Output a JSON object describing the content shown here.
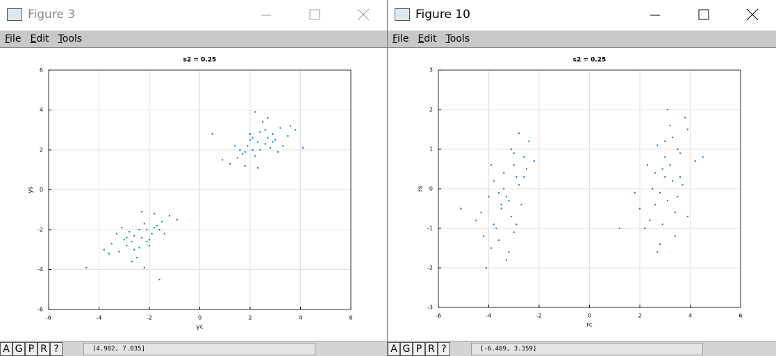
{
  "windows": [
    {
      "title": "Figure 3",
      "menu": [
        "File",
        "Edit",
        "Tools"
      ],
      "toolbar": [
        "A",
        "G",
        "P",
        "R",
        "?"
      ],
      "status": "[4.982, 7.035]"
    },
    {
      "title": "Figure 10",
      "menu": [
        "File",
        "Edit",
        "Tools"
      ],
      "toolbar": [
        "A",
        "G",
        "P",
        "R",
        "?"
      ],
      "status": "[-6.409, 3.359]"
    }
  ],
  "chart_data": [
    {
      "type": "scatter",
      "title": "s2 = 0.25",
      "xlabel": "yc",
      "ylabel": "ys",
      "grid": true,
      "xlim": [
        -6,
        6
      ],
      "ylim": [
        -6,
        6
      ],
      "xticks": [
        -6,
        -4,
        -2,
        0,
        2,
        4,
        6
      ],
      "yticks": [
        -6,
        -4,
        -2,
        0,
        2,
        4,
        6
      ],
      "series": [
        {
          "color": "#0072bd",
          "x": [
            2.3,
            1.8,
            2.9,
            2.1,
            3.2,
            1.5,
            2.6,
            2.0,
            2.4,
            3.5,
            1.2,
            2.8,
            1.9,
            2.2,
            3.0,
            2.5,
            1.6,
            2.7,
            3.8,
            0.9,
            2.3,
            2.0,
            3.3,
            1.7,
            2.6,
            2.9,
            1.4,
            2.1,
            3.1,
            2.4,
            1.8,
            2.7,
            4.1,
            0.5,
            2.2,
            3.6,
            -2.3,
            -1.8,
            -2.9,
            -2.1,
            -3.2,
            -1.5,
            -2.6,
            -2.0,
            -2.4,
            -3.5,
            -1.2,
            -2.8,
            -1.9,
            -2.2,
            -3.0,
            -2.5,
            -1.6,
            -2.7,
            -3.8,
            -0.9,
            -2.3,
            -2.0,
            -3.3,
            -1.7,
            -2.6,
            -2.9,
            -1.4,
            -2.1,
            -3.1,
            -2.4,
            -1.8,
            -2.7,
            -4.5,
            -1.6,
            -2.2,
            -3.6
          ],
          "y": [
            2.4,
            1.9,
            2.8,
            2.0,
            3.1,
            1.6,
            2.3,
            2.5,
            2.9,
            2.7,
            1.3,
            2.1,
            2.2,
            1.7,
            2.5,
            3.4,
            2.0,
            2.6,
            3.0,
            1.5,
            1.1,
            2.8,
            2.2,
            1.8,
            3.0,
            2.4,
            2.2,
            2.6,
            1.9,
            2.0,
            1.2,
            3.6,
            2.1,
            2.8,
            3.9,
            3.2,
            -2.4,
            -1.9,
            -2.8,
            -2.0,
            -3.1,
            -1.6,
            -2.3,
            -2.5,
            -2.9,
            -2.7,
            -1.3,
            -2.1,
            -2.2,
            -1.7,
            -2.5,
            -3.4,
            -2.0,
            -2.6,
            -3.0,
            -1.5,
            -1.1,
            -2.8,
            -2.2,
            -1.8,
            -3.0,
            -2.4,
            -2.2,
            -2.6,
            -1.9,
            -2.0,
            -1.2,
            -3.6,
            -3.9,
            -4.5,
            -3.9,
            -3.2
          ]
        }
      ]
    },
    {
      "type": "scatter",
      "title": "s2 = 0.25",
      "xlabel": "rc",
      "ylabel": "rs",
      "grid": true,
      "xlim": [
        -6,
        6
      ],
      "ylim": [
        -3,
        3
      ],
      "xticks": [
        -6,
        -4,
        -2,
        0,
        2,
        4,
        6
      ],
      "yticks": [
        -3,
        -2,
        -1,
        0,
        1,
        2,
        3
      ],
      "series": [
        {
          "color": "#0072bd",
          "x": [
            -3.3,
            -3.8,
            -2.9,
            -3.5,
            -3.0,
            -4.2,
            -2.6,
            -3.6,
            -3.1,
            -3.9,
            -2.8,
            -3.4,
            -4.5,
            -2.4,
            -3.2,
            -3.7,
            -2.7,
            -3.0,
            -4.0,
            -3.3,
            -2.5,
            -3.6,
            -4.3,
            -2.9,
            -3.1,
            -3.8,
            -2.2,
            -3.5,
            -5.1,
            -3.0,
            -2.6,
            -4.1,
            -3.4,
            -2.8,
            -3.9,
            -3.2,
            3.0,
            3.5,
            2.6,
            3.2,
            2.8,
            3.9,
            2.4,
            3.3,
            2.9,
            3.6,
            2.2,
            3.1,
            4.2,
            2.7,
            3.4,
            3.8,
            2.5,
            3.0,
            2.0,
            3.7,
            2.8,
            3.3,
            4.5,
            2.6,
            3.1,
            3.5,
            1.8,
            3.2,
            2.9,
            3.9,
            2.3,
            3.4,
            1.2,
            3.0,
            3.6,
            2.7
          ],
          "y": [
            -0.2,
            -0.9,
            0.3,
            -0.5,
            0.6,
            -1.2,
            0.8,
            -0.1,
            -0.7,
            -1.5,
            0.1,
            0.4,
            -0.8,
            1.2,
            -0.3,
            -1.0,
            -0.4,
            0.9,
            -0.2,
            -1.8,
            0.5,
            -1.3,
            -0.6,
            -0.9,
            1.0,
            0.2,
            0.7,
            -0.4,
            -0.5,
            -1.1,
            0.3,
            -2.0,
            0.0,
            1.4,
            0.6,
            -1.6,
            0.3,
            1.0,
            -0.4,
            0.6,
            -0.1,
            1.5,
            -0.8,
            0.2,
            0.5,
            0.9,
            -1.0,
            -0.3,
            0.7,
            1.1,
            -0.6,
            1.8,
            0.0,
            0.8,
            -0.5,
            0.1,
            -1.4,
            1.3,
            0.8,
            0.4,
            2.0,
            -0.2,
            -0.1,
            1.6,
            -0.9,
            -0.7,
            0.6,
            -1.2,
            -1.0,
            1.2,
            0.3,
            -1.6
          ]
        }
      ]
    }
  ]
}
